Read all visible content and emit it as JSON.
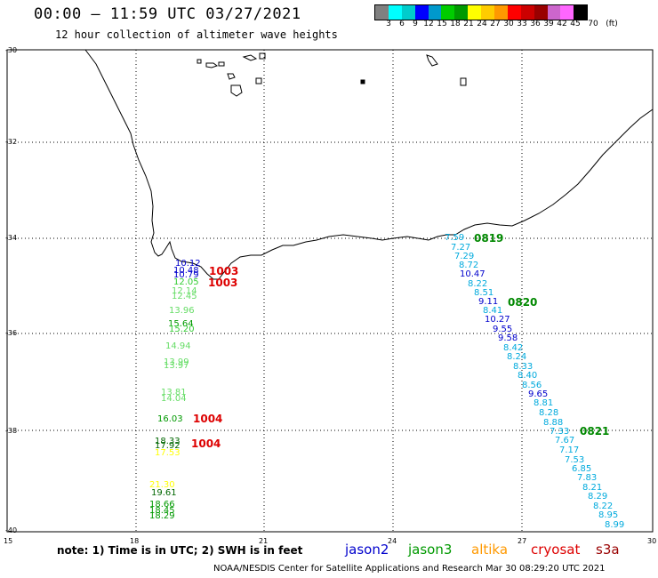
{
  "header": {
    "title": "00:00 – 11:59 UTC 03/27/2021",
    "subtitle": "12 hour collection of altimeter wave heights"
  },
  "scale": {
    "colors": [
      "#808080",
      "#00ffff",
      "#00cccc",
      "#0000ff",
      "#0099cc",
      "#00cc00",
      "#009900",
      "#ffff00",
      "#ffcc00",
      "#ff9900",
      "#ff0000",
      "#cc0000",
      "#990000",
      "#cc66cc",
      "#ff66ff",
      "#000000"
    ],
    "labels": [
      "3",
      "6",
      "9",
      "12",
      "15",
      "18",
      "21",
      "24",
      "27",
      "30",
      "33",
      "36",
      "39",
      "42",
      "45",
      "70",
      "(ft)"
    ]
  },
  "axes": {
    "lat_labels": [
      "-30",
      "-32",
      "-34",
      "-36",
      "-38",
      "-40"
    ],
    "lon_labels": [
      "15",
      "18",
      "21",
      "24",
      "27",
      "30"
    ]
  },
  "observations": [
    {
      "v": "10.12",
      "c": "#0000cc"
    },
    {
      "v": "10.48",
      "c": "#0000cc"
    },
    {
      "v": "10.79",
      "c": "#0000cc"
    },
    {
      "v": "12.05",
      "c": "#33cc33"
    },
    {
      "v": "12.14",
      "c": "#66dd66"
    },
    {
      "v": "12.45",
      "c": "#66dd66"
    },
    {
      "v": "13.96",
      "c": "#66dd66"
    },
    {
      "v": "15.64",
      "c": "#009900"
    },
    {
      "v": "15.20",
      "c": "#33cc33"
    },
    {
      "v": "14.94",
      "c": "#66dd66"
    },
    {
      "v": "13.99",
      "c": "#66dd66"
    },
    {
      "v": "13.97",
      "c": "#66dd66"
    },
    {
      "v": "13.81",
      "c": "#66dd66"
    },
    {
      "v": "14.04",
      "c": "#66dd66"
    },
    {
      "v": "16.03",
      "c": "#009900"
    },
    {
      "v": "18.33",
      "c": "#006600"
    },
    {
      "v": "17.92",
      "c": "#006600"
    },
    {
      "v": "17.53",
      "c": "#ffff00"
    },
    {
      "v": "21.30",
      "c": "#ffff00"
    },
    {
      "v": "19.61",
      "c": "#006600"
    },
    {
      "v": "18.66",
      "c": "#009900"
    },
    {
      "v": "18.45",
      "c": "#009900"
    },
    {
      "v": "18.29",
      "c": "#009900"
    },
    {
      "v": "7.59",
      "c": "#00aadd"
    },
    {
      "v": "7.27",
      "c": "#00aadd"
    },
    {
      "v": "7.29",
      "c": "#00aadd"
    },
    {
      "v": "8.72",
      "c": "#00aadd"
    },
    {
      "v": "10.47",
      "c": "#0000cc"
    },
    {
      "v": "8.22",
      "c": "#00aadd"
    },
    {
      "v": "8.51",
      "c": "#00aadd"
    },
    {
      "v": "9.11",
      "c": "#0000cc"
    },
    {
      "v": "8.41",
      "c": "#00aadd"
    },
    {
      "v": "10.27",
      "c": "#0000cc"
    },
    {
      "v": "9.55",
      "c": "#0000cc"
    },
    {
      "v": "9.58",
      "c": "#0000cc"
    },
    {
      "v": "8.42",
      "c": "#00aadd"
    },
    {
      "v": "8.24",
      "c": "#00aadd"
    },
    {
      "v": "8.33",
      "c": "#00aadd"
    },
    {
      "v": "8.40",
      "c": "#00aadd"
    },
    {
      "v": "8.56",
      "c": "#00aadd"
    },
    {
      "v": "9.65",
      "c": "#0000cc"
    },
    {
      "v": "8.81",
      "c": "#00aadd"
    },
    {
      "v": "8.28",
      "c": "#00aadd"
    },
    {
      "v": "8.88",
      "c": "#00aadd"
    },
    {
      "v": "7.33",
      "c": "#00aadd"
    },
    {
      "v": "7.67",
      "c": "#00aadd"
    },
    {
      "v": "7.17",
      "c": "#00aadd"
    },
    {
      "v": "7.53",
      "c": "#00aadd"
    },
    {
      "v": "6.85",
      "c": "#00aadd"
    },
    {
      "v": "7.83",
      "c": "#00aadd"
    },
    {
      "v": "8.21",
      "c": "#00aadd"
    },
    {
      "v": "8.29",
      "c": "#00aadd"
    },
    {
      "v": "8.22",
      "c": "#00aadd"
    },
    {
      "v": "8.95",
      "c": "#00aadd"
    },
    {
      "v": "8.99",
      "c": "#00aadd"
    }
  ],
  "time_labels": [
    {
      "v": "1003",
      "c": "#dd0000"
    },
    {
      "v": "1003",
      "c": "#dd0000"
    },
    {
      "v": "1004",
      "c": "#dd0000"
    },
    {
      "v": "1004",
      "c": "#dd0000"
    },
    {
      "v": "0819",
      "c": "#008800"
    },
    {
      "v": "0820",
      "c": "#008800"
    },
    {
      "v": "0821",
      "c": "#008800"
    }
  ],
  "footer": {
    "note": "note: 1) Time is in UTC; 2) SWH is in feet",
    "satellites": [
      {
        "name": "jason2",
        "color": "#0000cc"
      },
      {
        "name": "jason3",
        "color": "#009900"
      },
      {
        "name": "altika",
        "color": "#ff9900"
      },
      {
        "name": "cryosat",
        "color": "#dd0000"
      },
      {
        "name": "s3a",
        "color": "#990000"
      }
    ],
    "credit": "NOAA/NESDIS Center for Satellite Applications and Research    Mar 30 08:29:20 UTC 2021"
  }
}
